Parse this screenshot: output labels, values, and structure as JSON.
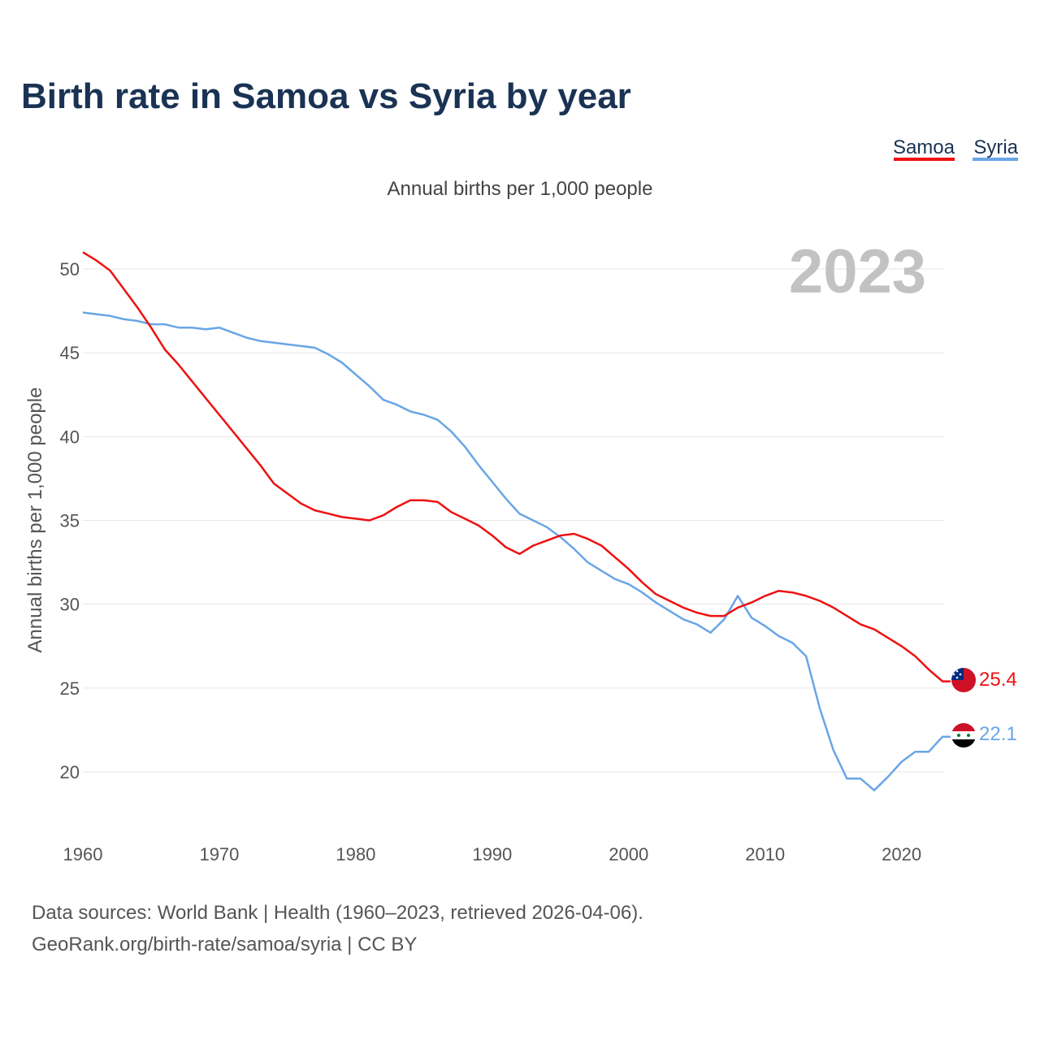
{
  "chart_data": {
    "type": "line",
    "title": "Birth rate in Samoa vs Syria by year",
    "subtitle": "Annual births per 1,000 people",
    "ylabel": "Annual births per 1,000 people",
    "xlabel": "",
    "year_watermark": "2023",
    "xlim": [
      1960,
      2023
    ],
    "ylim": [
      16.5,
      52
    ],
    "grid": true,
    "x_ticks": [
      1960,
      1970,
      1980,
      1990,
      2000,
      2010,
      2020
    ],
    "y_ticks": [
      20,
      25,
      30,
      35,
      40,
      45,
      50
    ],
    "legend_position": "top-right",
    "x": [
      1960,
      1961,
      1962,
      1963,
      1964,
      1965,
      1966,
      1967,
      1968,
      1969,
      1970,
      1971,
      1972,
      1973,
      1974,
      1975,
      1976,
      1977,
      1978,
      1979,
      1980,
      1981,
      1982,
      1983,
      1984,
      1985,
      1986,
      1987,
      1988,
      1989,
      1990,
      1991,
      1992,
      1993,
      1994,
      1995,
      1996,
      1997,
      1998,
      1999,
      2000,
      2001,
      2002,
      2003,
      2004,
      2005,
      2006,
      2007,
      2008,
      2009,
      2010,
      2011,
      2012,
      2013,
      2014,
      2015,
      2016,
      2017,
      2018,
      2019,
      2020,
      2021,
      2022,
      2023
    ],
    "series": [
      {
        "name": "Samoa",
        "color": "#ee1111",
        "flag_icon": "samoa-flag-icon",
        "end_label": "25.4",
        "values": [
          51.0,
          50.5,
          49.9,
          48.8,
          47.7,
          46.5,
          45.2,
          44.3,
          43.3,
          42.3,
          41.3,
          40.3,
          39.3,
          38.3,
          37.2,
          36.6,
          36.0,
          35.6,
          35.4,
          35.2,
          35.1,
          35.0,
          35.3,
          35.8,
          36.2,
          36.2,
          36.1,
          35.5,
          35.1,
          34.7,
          34.1,
          33.4,
          33.0,
          33.5,
          33.8,
          34.1,
          34.2,
          33.9,
          33.5,
          32.8,
          32.1,
          31.3,
          30.6,
          30.2,
          29.8,
          29.5,
          29.3,
          29.3,
          29.8,
          30.1,
          30.5,
          30.8,
          30.7,
          30.5,
          30.2,
          29.8,
          29.3,
          28.8,
          28.5,
          28.0,
          27.5,
          26.9,
          26.1,
          25.4
        ]
      },
      {
        "name": "Syria",
        "color": "#69a6e6",
        "flag_icon": "syria-flag-icon",
        "end_label": "22.1",
        "values": [
          47.4,
          47.3,
          47.2,
          47.0,
          46.9,
          46.7,
          46.7,
          46.5,
          46.5,
          46.4,
          46.5,
          46.2,
          45.9,
          45.7,
          45.6,
          45.5,
          45.4,
          45.3,
          44.9,
          44.4,
          43.7,
          43.0,
          42.2,
          41.9,
          41.5,
          41.3,
          41.0,
          40.3,
          39.4,
          38.3,
          37.3,
          36.3,
          35.4,
          35.0,
          34.6,
          34.0,
          33.3,
          32.5,
          32.0,
          31.5,
          31.2,
          30.7,
          30.1,
          29.6,
          29.1,
          28.8,
          28.3,
          29.1,
          30.5,
          29.2,
          28.7,
          28.1,
          27.7,
          26.9,
          23.8,
          21.3,
          19.6,
          19.6,
          18.9,
          19.7,
          20.6,
          21.2,
          21.2,
          22.1
        ]
      }
    ]
  },
  "footer": {
    "source_line": "Data sources: World Bank | Health (1960–2023, retrieved 2026-04-06).",
    "credit_line": "GeoRank.org/birth-rate/samoa/syria | CC BY"
  }
}
